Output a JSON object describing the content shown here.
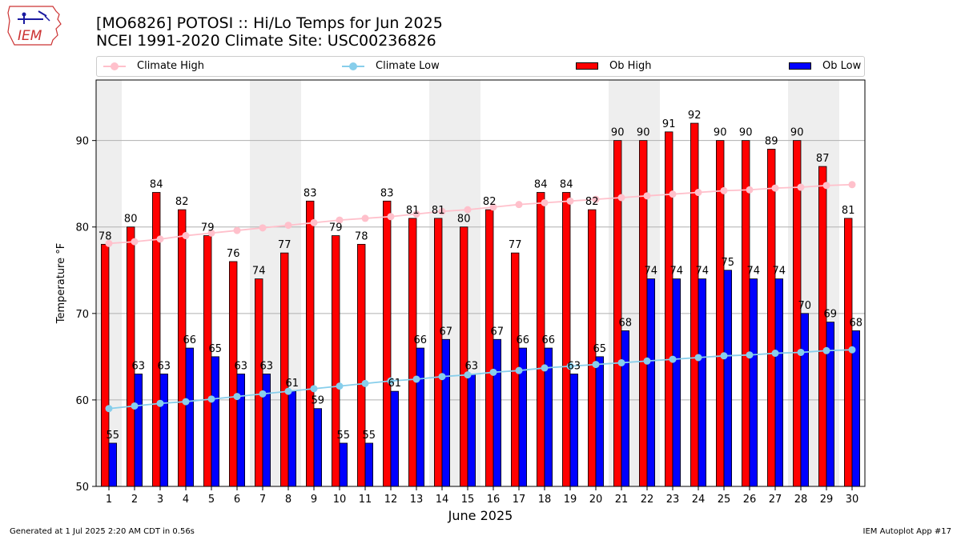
{
  "header": {
    "title_line1": "[MO6826] POTOSI :: Hi/Lo Temps for Jun 2025",
    "title_line2": "NCEI 1991-2020 Climate Site: USC00236826",
    "logo_text": "IEM"
  },
  "legend": {
    "climate_high": "Climate High",
    "climate_low": "Climate Low",
    "ob_high": "Ob High",
    "ob_low": "Ob Low"
  },
  "footer": {
    "generated": "Generated at 1 Jul 2025 2:20 AM CDT in 0.56s",
    "app": "IEM Autoplot App #17"
  },
  "colors": {
    "ob_high": "#ff0000",
    "ob_low": "#0000ff",
    "climate_high": "#ffc0cb",
    "climate_low": "#87ceeb",
    "weekend_shade": "#eeeeee",
    "grid": "#b0b0b0"
  },
  "chart_data": {
    "type": "bar",
    "title": "[MO6826] POTOSI :: Hi/Lo Temps for Jun 2025",
    "xlabel": "June 2025",
    "ylabel": "Temperature °F",
    "ylim": [
      50,
      97
    ],
    "yticks": [
      50,
      60,
      70,
      80,
      90
    ],
    "grid": "horizontal",
    "legend_position": "top",
    "categories": [
      "1",
      "2",
      "3",
      "4",
      "5",
      "6",
      "7",
      "8",
      "9",
      "10",
      "11",
      "12",
      "13",
      "14",
      "15",
      "16",
      "17",
      "18",
      "19",
      "20",
      "21",
      "22",
      "23",
      "24",
      "25",
      "26",
      "27",
      "28",
      "29",
      "30"
    ],
    "shaded_days": [
      1,
      7,
      8,
      14,
      15,
      21,
      22,
      28,
      29
    ],
    "series": [
      {
        "name": "Ob High",
        "type": "bar",
        "values": [
          78,
          80,
          84,
          82,
          79,
          76,
          74,
          77,
          83,
          79,
          78,
          83,
          81,
          81,
          80,
          82,
          77,
          84,
          84,
          82,
          90,
          90,
          91,
          92,
          90,
          90,
          89,
          90,
          87,
          81
        ]
      },
      {
        "name": "Ob Low",
        "type": "bar",
        "values": [
          55,
          63,
          63,
          66,
          65,
          63,
          63,
          61,
          59,
          55,
          55,
          61,
          66,
          67,
          63,
          67,
          66,
          66,
          63,
          65,
          68,
          74,
          74,
          74,
          75,
          74,
          74,
          70,
          69,
          68
        ]
      },
      {
        "name": "Climate High",
        "type": "line",
        "values": [
          78.1,
          78.3,
          78.6,
          79.0,
          79.3,
          79.6,
          79.9,
          80.2,
          80.5,
          80.8,
          81.0,
          81.2,
          81.5,
          81.8,
          82.0,
          82.3,
          82.6,
          82.8,
          83.0,
          83.2,
          83.4,
          83.6,
          83.8,
          84.0,
          84.2,
          84.3,
          84.5,
          84.6,
          84.8,
          84.9
        ]
      },
      {
        "name": "Climate Low",
        "type": "line",
        "values": [
          59.0,
          59.3,
          59.6,
          59.8,
          60.1,
          60.4,
          60.7,
          61.0,
          61.3,
          61.6,
          61.9,
          62.2,
          62.4,
          62.7,
          62.9,
          63.2,
          63.4,
          63.7,
          63.9,
          64.1,
          64.3,
          64.5,
          64.7,
          64.9,
          65.1,
          65.2,
          65.4,
          65.5,
          65.7,
          65.8
        ]
      }
    ]
  }
}
